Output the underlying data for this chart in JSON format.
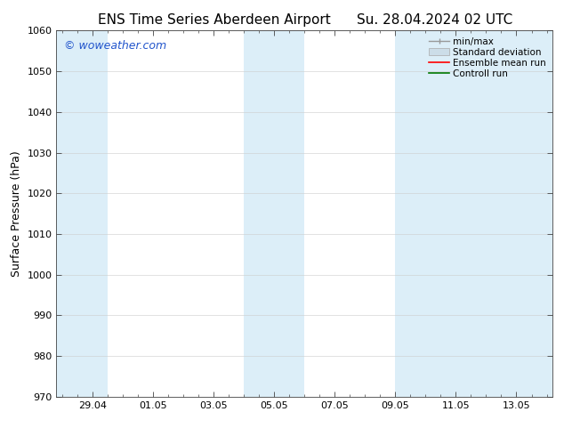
{
  "title_left": "ENS Time Series Aberdeen Airport",
  "title_right": "Su. 28.04.2024 02 UTC",
  "ylabel": "Surface Pressure (hPa)",
  "ylim": [
    970,
    1060
  ],
  "yticks": [
    970,
    980,
    990,
    1000,
    1010,
    1020,
    1030,
    1040,
    1050,
    1060
  ],
  "xtick_labels": [
    "29.04",
    "01.05",
    "03.05",
    "05.05",
    "07.05",
    "09.05",
    "11.05",
    "13.05"
  ],
  "xtick_positions": [
    1,
    3,
    5,
    7,
    9,
    11,
    13,
    15
  ],
  "xlim": [
    -0.2,
    16.2
  ],
  "shade_bands": [
    {
      "x_start": -0.2,
      "x_end": 1.5
    },
    {
      "x_start": 6.0,
      "x_end": 8.0
    },
    {
      "x_start": 11.0,
      "x_end": 16.2
    }
  ],
  "shade_color": "#dceef8",
  "background_color": "#ffffff",
  "watermark": "© woweather.com",
  "watermark_color": "#2255cc",
  "legend_items": [
    {
      "label": "min/max",
      "color": "#aaaaaa",
      "type": "errorbar"
    },
    {
      "label": "Standard deviation",
      "color": "#ccdde8",
      "type": "bar"
    },
    {
      "label": "Ensemble mean run",
      "color": "#ff0000",
      "type": "line"
    },
    {
      "label": "Controll run",
      "color": "#007700",
      "type": "line"
    }
  ],
  "title_fontsize": 11,
  "ylabel_fontsize": 9,
  "tick_fontsize": 8,
  "watermark_fontsize": 9,
  "legend_fontsize": 7.5,
  "grid_color": "#cccccc",
  "tick_color": "#444444",
  "spine_color": "#444444"
}
